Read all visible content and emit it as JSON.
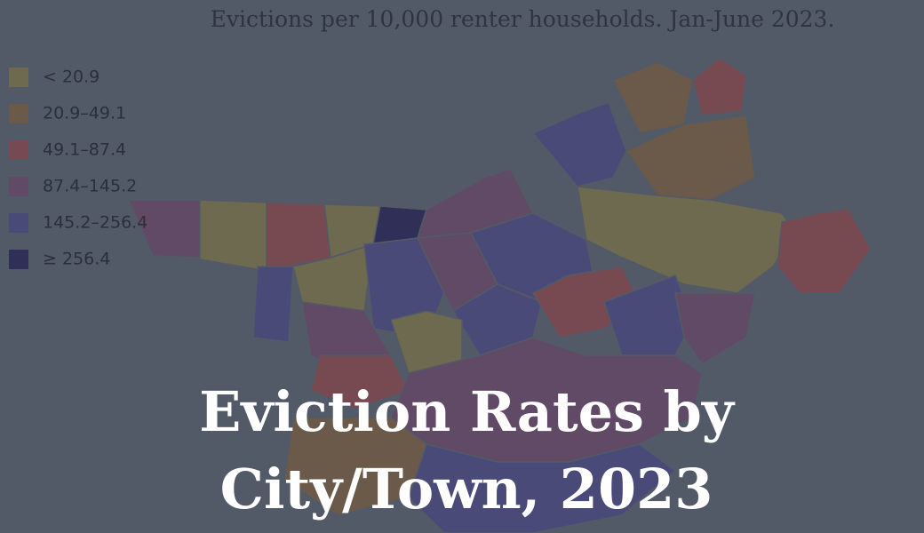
{
  "subtitle": "Evictions per 10,000 renter households. Jan-June 2023.",
  "legend": [
    {
      "label": "< 20.9",
      "color": "#6d6a4f"
    },
    {
      "label": "20.9–49.1",
      "color": "#6b5a49"
    },
    {
      "label": "49.1–87.4",
      "color": "#774a51"
    },
    {
      "label": "87.4–145.2",
      "color": "#604a66"
    },
    {
      "label": "145.2–256.4",
      "color": "#4a4a78"
    },
    {
      "label": "≥ 256.4",
      "color": "#2f2f58"
    }
  ],
  "title": [
    "Eviction Rates by",
    "City/Town, 2023"
  ]
}
